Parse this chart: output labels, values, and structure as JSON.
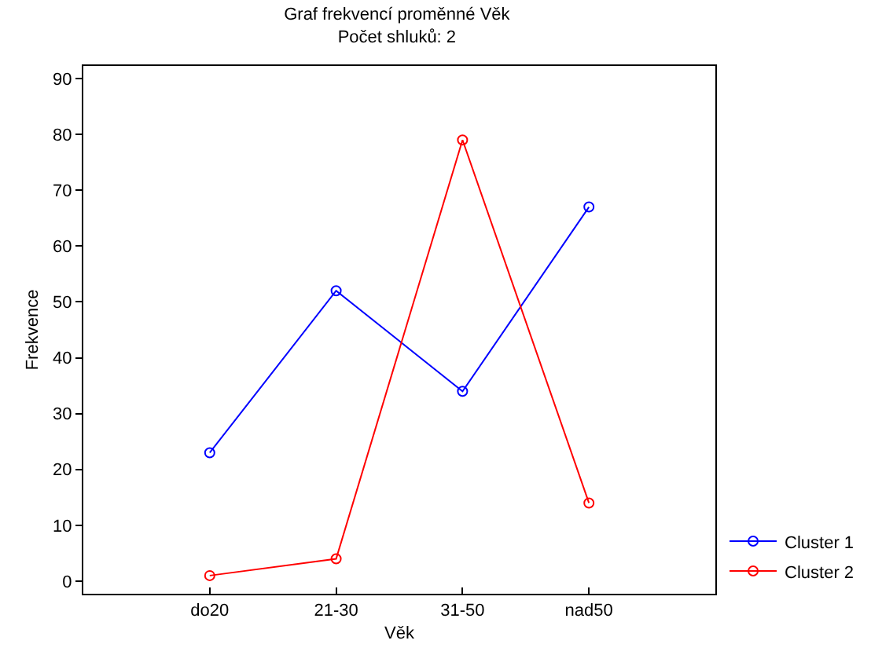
{
  "chart_data": {
    "type": "line",
    "title": "Graf frekvencí proměnné Věk",
    "subtitle": "Počet shluků: 2",
    "xlabel": "Věk",
    "ylabel": "Frekvence",
    "categories": [
      "do20",
      "21-30",
      "31-50",
      "nad50"
    ],
    "series": [
      {
        "name": "Cluster 1",
        "color": "#0000ff",
        "values": [
          23,
          52,
          34,
          67
        ]
      },
      {
        "name": "Cluster 2",
        "color": "#ff0000",
        "values": [
          1,
          4,
          79,
          14
        ]
      }
    ],
    "ylim": [
      -2.25,
      92.25
    ],
    "yticks": [
      0,
      10,
      20,
      30,
      40,
      50,
      60,
      70,
      80,
      90
    ],
    "grid": false,
    "legend": "bottom right",
    "marker": "circle",
    "line_style": "solid"
  }
}
